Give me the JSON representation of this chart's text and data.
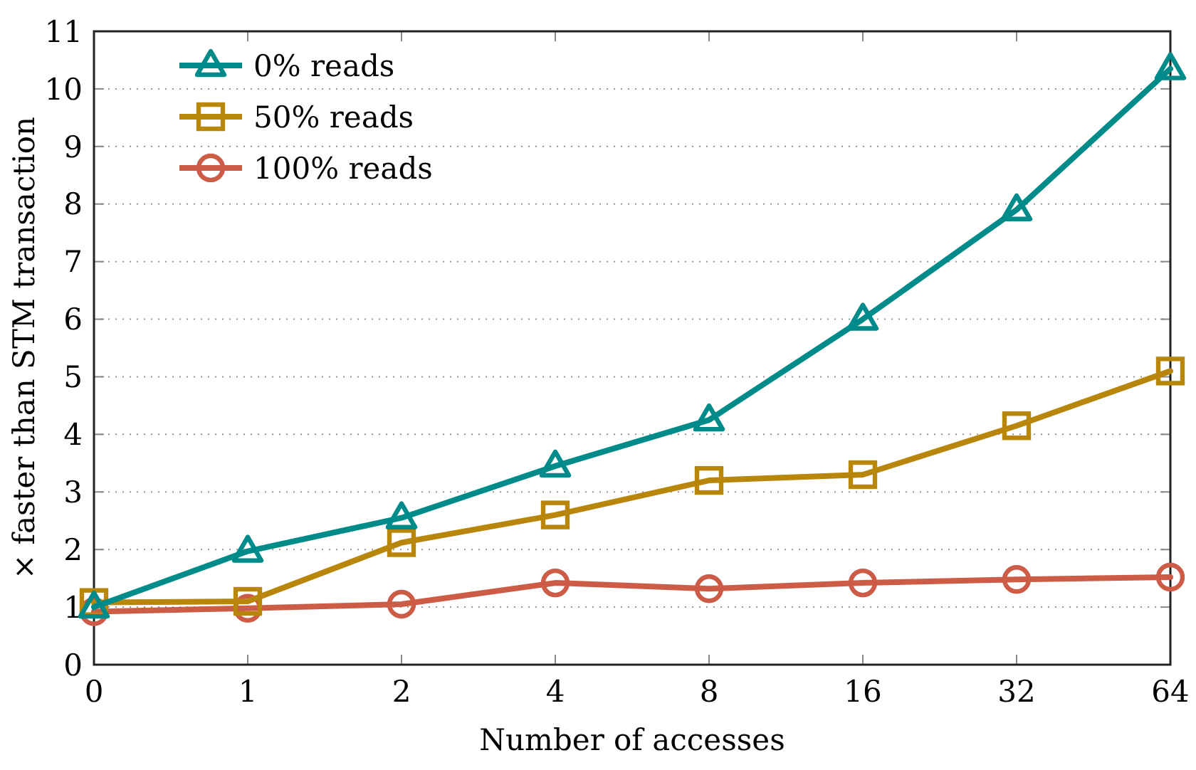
{
  "chart_data": {
    "type": "line",
    "xlabel": "Number of accesses",
    "ylabel": "× faster than STM transaction",
    "categories": [
      "0",
      "1",
      "2",
      "4",
      "8",
      "16",
      "32",
      "64"
    ],
    "ylim": [
      0,
      11
    ],
    "yticks": [
      0,
      1,
      2,
      3,
      4,
      5,
      6,
      7,
      8,
      9,
      10,
      11
    ],
    "grid": "y",
    "legend": "top left",
    "line_style": "solid",
    "series": [
      {
        "name": "0% reads",
        "color": "#008b8b",
        "marker": "triangle",
        "values": [
          1.0,
          1.97,
          2.55,
          3.45,
          4.25,
          6.0,
          7.9,
          10.35
        ]
      },
      {
        "name": "50% reads",
        "color": "#b8860b",
        "marker": "square",
        "values": [
          1.08,
          1.1,
          2.12,
          2.6,
          3.2,
          3.3,
          4.15,
          5.1
        ]
      },
      {
        "name": "100% reads",
        "color": "#cd5c47",
        "marker": "circle",
        "values": [
          0.92,
          0.98,
          1.05,
          1.42,
          1.32,
          1.42,
          1.48,
          1.52
        ]
      }
    ]
  }
}
